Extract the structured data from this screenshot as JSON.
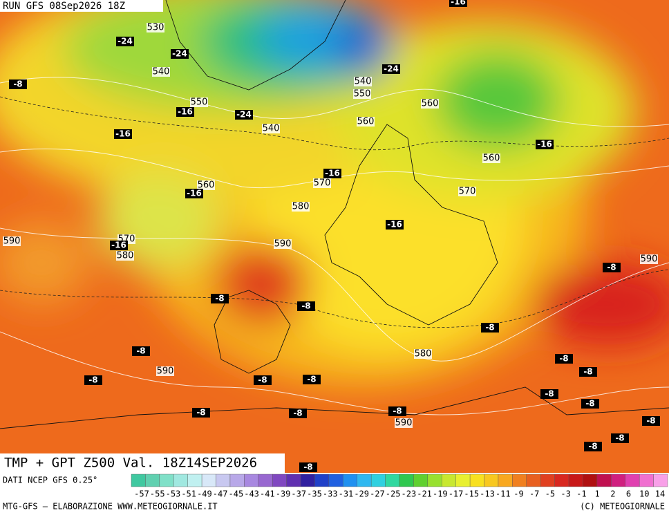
{
  "header": {
    "run": "RUN GFS 08Sep2026 18Z",
    "product": "TMP + GPT Z500 Val. 18Z14SEP2026"
  },
  "footer": {
    "source": "DATI NCEP GFS 0.25°",
    "credit": "MTG-GFS – ELABORAZIONE WWW.METEOGIORNALE.IT",
    "copyright": "(C) METEOGIORNALE"
  },
  "scale": {
    "labels": [
      "-57",
      "-55",
      "-53",
      "-51",
      "-49",
      "-47",
      "-45",
      "-43",
      "-41",
      "-39",
      "-37",
      "-35",
      "-33",
      "-31",
      "-29",
      "-27",
      "-25",
      "-23",
      "-21",
      "-19",
      "-17",
      "-15",
      "-13",
      "-11",
      "-9",
      "-7",
      "-5",
      "-3",
      "-1",
      "1",
      "2",
      "6",
      "10",
      "14"
    ]
  },
  "map": {
    "height_labels": [
      "530",
      "540",
      "550",
      "540",
      "540",
      "550",
      "560",
      "560",
      "560",
      "570",
      "570",
      "560",
      "580",
      "590",
      "570",
      "580",
      "590",
      "590",
      "580",
      "590",
      "590"
    ],
    "temp_labels": [
      "-16",
      "-24",
      "-24",
      "-24",
      "-8",
      "-16",
      "-24",
      "-16",
      "-16",
      "-16",
      "-16",
      "-16",
      "-16",
      "-8",
      "-8",
      "-8",
      "-8",
      "-8",
      "-8",
      "-8",
      "-8",
      "-8",
      "-8",
      "-8",
      "-8",
      "-8",
      "-8",
      "-8",
      "-8",
      "-8",
      "-8",
      "-8"
    ]
  }
}
